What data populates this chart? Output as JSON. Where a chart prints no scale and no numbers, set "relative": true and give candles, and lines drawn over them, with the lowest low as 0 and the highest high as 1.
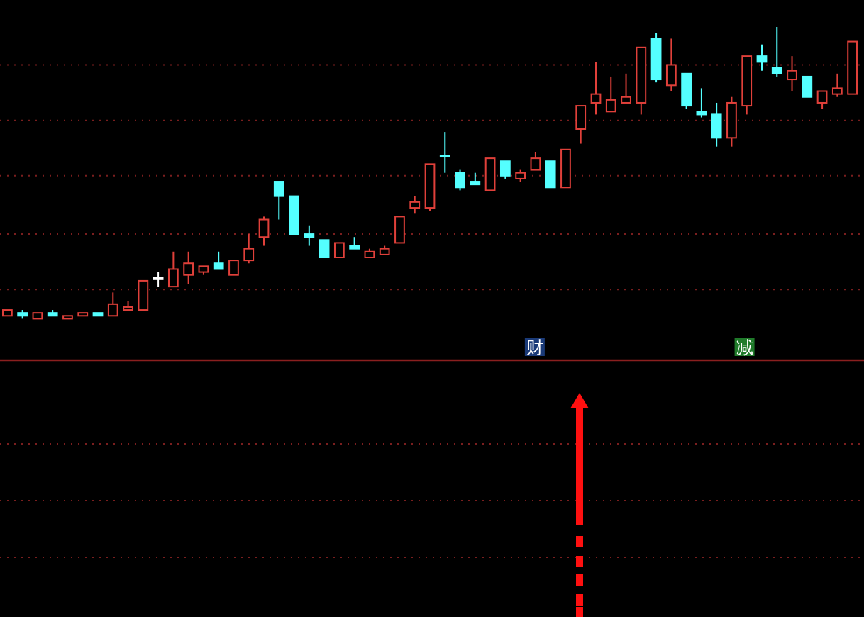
{
  "chart_data": {
    "type": "candlestick",
    "relative": true,
    "categories": [
      null,
      null,
      null,
      null,
      null,
      null,
      null,
      null,
      null,
      null,
      null,
      null,
      null,
      null,
      null,
      null,
      null,
      null,
      null,
      null,
      null,
      null,
      null,
      null,
      null,
      null,
      null,
      null,
      null,
      null,
      null,
      null,
      null,
      null,
      null,
      null,
      null,
      null,
      null,
      null,
      null,
      null,
      null,
      null,
      null,
      null,
      null,
      null,
      null,
      null,
      null,
      null,
      null,
      null,
      null,
      null,
      null
    ],
    "ohlc": [
      [
        0.01,
        0.03,
        0.01,
        0.03
      ],
      [
        0.02,
        0.03,
        0.0,
        0.01
      ],
      [
        0.0,
        0.02,
        0.0,
        0.02
      ],
      [
        0.02,
        0.03,
        0.01,
        0.01
      ],
      [
        0.0,
        0.01,
        0.0,
        0.01
      ],
      [
        0.01,
        0.02,
        0.01,
        0.02
      ],
      [
        0.02,
        0.02,
        0.01,
        0.01
      ],
      [
        0.01,
        0.09,
        0.01,
        0.05
      ],
      [
        0.03,
        0.06,
        0.03,
        0.04
      ],
      [
        0.03,
        0.13,
        0.03,
        0.13
      ],
      [
        0.14,
        0.16,
        0.11,
        0.14
      ],
      [
        0.11,
        0.23,
        0.11,
        0.17
      ],
      [
        0.15,
        0.23,
        0.12,
        0.19
      ],
      [
        0.16,
        0.18,
        0.15,
        0.18
      ],
      [
        0.19,
        0.23,
        0.17,
        0.17
      ],
      [
        0.15,
        0.2,
        0.15,
        0.2
      ],
      [
        0.2,
        0.29,
        0.19,
        0.24
      ],
      [
        0.28,
        0.35,
        0.25,
        0.34
      ],
      [
        0.47,
        0.47,
        0.34,
        0.42
      ],
      [
        0.42,
        0.42,
        0.29,
        0.29
      ],
      [
        0.29,
        0.32,
        0.25,
        0.28
      ],
      [
        0.27,
        0.27,
        0.21,
        0.21
      ],
      [
        0.21,
        0.26,
        0.21,
        0.26
      ],
      [
        0.25,
        0.28,
        0.24,
        0.24
      ],
      [
        0.21,
        0.24,
        0.21,
        0.23
      ],
      [
        0.22,
        0.25,
        0.22,
        0.24
      ],
      [
        0.26,
        0.35,
        0.26,
        0.35
      ],
      [
        0.38,
        0.42,
        0.36,
        0.4
      ],
      [
        0.38,
        0.53,
        0.37,
        0.53
      ],
      [
        0.56,
        0.64,
        0.5,
        0.56
      ],
      [
        0.5,
        0.51,
        0.44,
        0.45
      ],
      [
        0.47,
        0.5,
        0.46,
        0.46
      ],
      [
        0.44,
        0.55,
        0.44,
        0.55
      ],
      [
        0.54,
        0.54,
        0.48,
        0.49
      ],
      [
        0.48,
        0.51,
        0.47,
        0.5
      ],
      [
        0.51,
        0.57,
        0.51,
        0.55
      ],
      [
        0.54,
        0.54,
        0.45,
        0.45
      ],
      [
        0.45,
        0.58,
        0.45,
        0.58
      ],
      [
        0.65,
        0.73,
        0.6,
        0.73
      ],
      [
        0.74,
        0.88,
        0.7,
        0.77
      ],
      [
        0.71,
        0.83,
        0.71,
        0.75
      ],
      [
        0.74,
        0.84,
        0.74,
        0.76
      ],
      [
        0.74,
        0.93,
        0.7,
        0.93
      ],
      [
        0.96,
        0.98,
        0.81,
        0.82
      ],
      [
        0.8,
        0.96,
        0.78,
        0.87
      ],
      [
        0.84,
        0.84,
        0.72,
        0.73
      ],
      [
        0.71,
        0.79,
        0.69,
        0.7
      ],
      [
        0.7,
        0.74,
        0.59,
        0.62
      ],
      [
        0.62,
        0.76,
        0.59,
        0.74
      ],
      [
        0.73,
        0.9,
        0.7,
        0.9
      ],
      [
        0.9,
        0.94,
        0.85,
        0.88
      ],
      [
        0.86,
        1,
        0.83,
        0.84
      ],
      [
        0.82,
        0.9,
        0.78,
        0.85
      ],
      [
        0.83,
        0.83,
        0.76,
        0.76
      ],
      [
        0.74,
        0.78,
        0.72,
        0.78
      ],
      [
        0.77,
        0.84,
        0.76,
        0.79
      ],
      [
        0.77,
        0.95,
        0.77,
        0.95
      ]
    ],
    "colors": [
      "#e0403a",
      "#54ffff",
      "#e0403a",
      "#54ffff",
      "#e0403a",
      "#e0403a",
      "#54ffff",
      "#e0403a",
      "#e0403a",
      "#e0403a",
      "#ffffff",
      "#e0403a",
      "#e0403a",
      "#e0403a",
      "#54ffff",
      "#e0403a",
      "#e0403a",
      "#e0403a",
      "#54ffff",
      "#54ffff",
      "#54ffff",
      "#54ffff",
      "#e0403a",
      "#54ffff",
      "#e0403a",
      "#e0403a",
      "#e0403a",
      "#e0403a",
      "#e0403a",
      "#54ffff",
      "#54ffff",
      "#54ffff",
      "#e0403a",
      "#54ffff",
      "#e0403a",
      "#e0403a",
      "#54ffff",
      "#e0403a",
      "#e0403a",
      "#e0403a",
      "#e0403a",
      "#e0403a",
      "#e0403a",
      "#54ffff",
      "#e0403a",
      "#54ffff",
      "#54ffff",
      "#54ffff",
      "#e0403a",
      "#e0403a",
      "#54ffff",
      "#54ffff",
      "#e0403a",
      "#54ffff",
      "#e0403a",
      "#e0403a",
      "#e0403a"
    ],
    "ref_lines": [
      {
        "axis": "y",
        "value": 0.87,
        "color": "#7a1e1e",
        "line_style": "dotted"
      },
      {
        "axis": "y",
        "value": 0.68,
        "color": "#7a1e1e",
        "line_style": "dotted"
      },
      {
        "axis": "y",
        "value": 0.49,
        "color": "#7a1e1e",
        "line_style": "dotted"
      },
      {
        "axis": "y",
        "value": 0.29,
        "color": "#7a1e1e",
        "line_style": "dotted"
      },
      {
        "axis": "y",
        "value": 0.1,
        "color": "#7a1e1e",
        "line_style": "dotted"
      }
    ],
    "annotations": [
      "财",
      "减"
    ]
  }
}
